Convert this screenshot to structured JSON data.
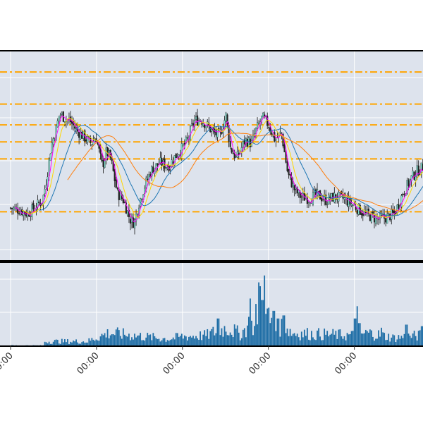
{
  "chart_data": {
    "type": "candlestick",
    "title": "",
    "xlabel": "",
    "ylabel": "",
    "grid": true,
    "legend": "none",
    "x_tick_labels": [
      "00:00",
      "00:00",
      "00:00",
      "00:00",
      "00:00"
    ],
    "x_tick_positions": [
      0.0,
      0.2015,
      0.403,
      0.6045,
      0.806
    ],
    "price_ylim": [
      0,
      100
    ],
    "volume_ylim": [
      0,
      100
    ],
    "horizontal_levels": [
      94,
      77,
      66,
      57,
      48,
      20
    ],
    "price_path": [
      [
        0.0,
        22
      ],
      [
        0.02,
        21
      ],
      [
        0.04,
        19
      ],
      [
        0.06,
        23
      ],
      [
        0.075,
        26
      ],
      [
        0.085,
        38
      ],
      [
        0.095,
        55
      ],
      [
        0.105,
        62
      ],
      [
        0.115,
        72
      ],
      [
        0.125,
        70
      ],
      [
        0.14,
        68
      ],
      [
        0.155,
        63
      ],
      [
        0.17,
        60
      ],
      [
        0.19,
        56
      ],
      [
        0.2,
        60
      ],
      [
        0.215,
        44
      ],
      [
        0.225,
        52
      ],
      [
        0.235,
        48
      ],
      [
        0.25,
        30
      ],
      [
        0.265,
        26
      ],
      [
        0.28,
        16
      ],
      [
        0.29,
        14
      ],
      [
        0.3,
        24
      ],
      [
        0.315,
        34
      ],
      [
        0.33,
        42
      ],
      [
        0.35,
        46
      ],
      [
        0.37,
        44
      ],
      [
        0.385,
        49
      ],
      [
        0.4,
        53
      ],
      [
        0.415,
        58
      ],
      [
        0.43,
        68
      ],
      [
        0.445,
        69
      ],
      [
        0.46,
        66
      ],
      [
        0.475,
        62
      ],
      [
        0.49,
        60
      ],
      [
        0.505,
        71
      ],
      [
        0.515,
        54
      ],
      [
        0.53,
        48
      ],
      [
        0.55,
        58
      ],
      [
        0.565,
        56
      ],
      [
        0.575,
        63
      ],
      [
        0.59,
        70
      ],
      [
        0.605,
        66
      ],
      [
        0.62,
        58
      ],
      [
        0.635,
        62
      ],
      [
        0.65,
        40
      ],
      [
        0.665,
        32
      ],
      [
        0.68,
        28
      ],
      [
        0.7,
        27
      ],
      [
        0.72,
        29
      ],
      [
        0.74,
        26
      ],
      [
        0.76,
        28
      ],
      [
        0.78,
        27
      ],
      [
        0.8,
        24
      ],
      [
        0.83,
        19
      ],
      [
        0.86,
        16
      ],
      [
        0.88,
        17
      ],
      [
        0.9,
        19
      ],
      [
        0.92,
        30
      ],
      [
        0.94,
        38
      ],
      [
        0.955,
        42
      ],
      [
        0.97,
        44
      ],
      [
        0.985,
        38
      ],
      [
        1.0,
        36
      ]
    ],
    "price_lines": [
      {
        "color": "#ff00ff",
        "period": 10
      },
      {
        "color": "#ffd700",
        "period": 25
      },
      {
        "color": "#1f77b4",
        "period": 60
      },
      {
        "color": "#ff7f0e",
        "period": 120
      }
    ],
    "volume_peaks": [
      [
        0.18,
        8
      ],
      [
        0.23,
        22
      ],
      [
        0.37,
        12
      ],
      [
        0.4,
        16
      ],
      [
        0.46,
        18
      ],
      [
        0.49,
        28
      ],
      [
        0.51,
        30
      ],
      [
        0.54,
        20
      ],
      [
        0.56,
        38
      ],
      [
        0.58,
        24
      ],
      [
        0.6,
        48
      ],
      [
        0.62,
        28
      ],
      [
        0.64,
        36
      ],
      [
        0.66,
        22
      ],
      [
        0.72,
        20
      ],
      [
        0.8,
        18
      ],
      [
        0.84,
        22
      ],
      [
        0.9,
        14
      ],
      [
        0.93,
        16
      ],
      [
        0.96,
        18
      ],
      [
        0.99,
        12
      ]
    ],
    "volume_hot": [
      [
        0.487,
        36
      ],
      [
        0.563,
        62
      ],
      [
        0.575,
        55
      ],
      [
        0.583,
        83
      ],
      [
        0.586,
        78
      ],
      [
        0.59,
        60
      ],
      [
        0.594,
        92
      ],
      [
        0.598,
        42
      ],
      [
        0.606,
        50
      ],
      [
        0.617,
        46
      ],
      [
        0.627,
        36
      ],
      [
        0.64,
        40
      ],
      [
        0.808,
        36
      ],
      [
        0.812,
        52
      ],
      [
        0.818,
        30
      ],
      [
        0.87,
        24
      ],
      [
        0.928,
        28
      ],
      [
        0.965,
        26
      ],
      [
        0.978,
        32
      ]
    ]
  }
}
